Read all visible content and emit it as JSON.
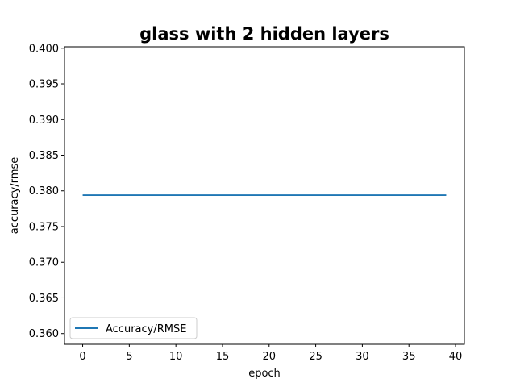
{
  "chart_data": {
    "type": "line",
    "title": "glass with 2 hidden layers",
    "xlabel": "epoch",
    "ylabel": "accuracy/rmse",
    "xlim": [
      -1.95,
      40.95
    ],
    "ylim": [
      0.3585,
      0.4002
    ],
    "xticks": [
      0,
      5,
      10,
      15,
      20,
      25,
      30,
      35,
      40
    ],
    "yticks": [
      0.36,
      0.365,
      0.37,
      0.375,
      0.38,
      0.385,
      0.39,
      0.395,
      0.4
    ],
    "ytick_labels": [
      "0.360",
      "0.365",
      "0.370",
      "0.375",
      "0.380",
      "0.385",
      "0.390",
      "0.395",
      "0.400"
    ],
    "grid": false,
    "legend_position": "lower-left",
    "series": [
      {
        "name": "Accuracy/RMSE",
        "color": "#1f77b4",
        "x": [
          0,
          1,
          2,
          3,
          4,
          5,
          6,
          7,
          8,
          9,
          10,
          11,
          12,
          13,
          14,
          15,
          16,
          17,
          18,
          19,
          20,
          21,
          22,
          23,
          24,
          25,
          26,
          27,
          28,
          29,
          30,
          31,
          32,
          33,
          34,
          35,
          36,
          37,
          38,
          39
        ],
        "y": [
          0.3794,
          0.3794,
          0.3794,
          0.3794,
          0.3794,
          0.3794,
          0.3794,
          0.3794,
          0.3794,
          0.3794,
          0.3794,
          0.3794,
          0.3794,
          0.3794,
          0.3794,
          0.3794,
          0.3794,
          0.3794,
          0.3794,
          0.3794,
          0.3794,
          0.3794,
          0.3794,
          0.3794,
          0.3794,
          0.3794,
          0.3794,
          0.3794,
          0.3794,
          0.3794,
          0.3794,
          0.3794,
          0.3794,
          0.3794,
          0.3794,
          0.3794,
          0.3794,
          0.3794,
          0.3794,
          0.3794
        ]
      }
    ]
  }
}
